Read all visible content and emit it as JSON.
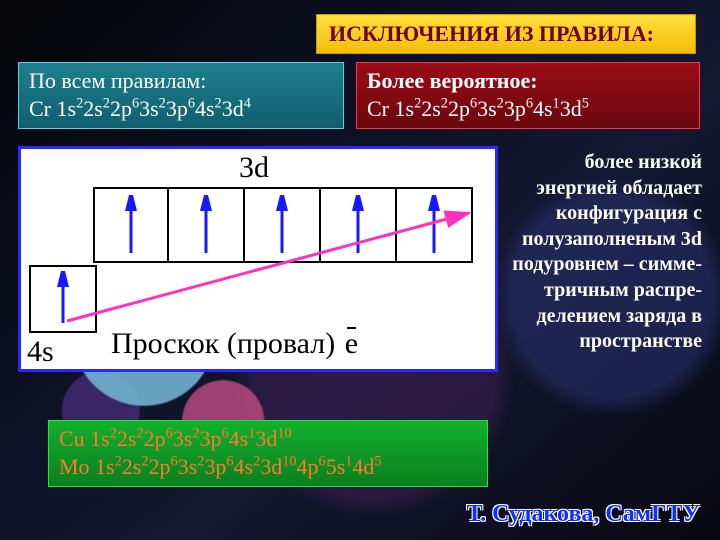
{
  "title": "ИСКЛЮЧЕНИЯ ИЗ ПРАВИЛА:",
  "left_rule": {
    "line1": "По всем правилам:",
    "el": "Cr",
    "cfg": [
      "1s",
      "2",
      "2s",
      "2",
      "2p",
      "6",
      "3s",
      "2",
      "3p",
      "6",
      "4s",
      "2",
      "3d",
      "4"
    ]
  },
  "right_prob": {
    "line1": "Более вероятное:",
    "el": "Cr",
    "cfg": [
      "1s",
      "2",
      "2s",
      "2",
      "2p",
      "6",
      "3s",
      "2",
      "3p",
      "6",
      "4s",
      "1",
      "3d",
      "5"
    ]
  },
  "side_text": "более низкой энергией обладает конфигурация с полузаполненым 3d подуровнем – симме- тричным распре- делением заряда в пространстве",
  "bottom": {
    "rows": [
      {
        "el": "Cu",
        "cfg": [
          "1s",
          "2",
          "2s",
          "2",
          "2p",
          "6",
          "3s",
          "2",
          "3p",
          "6",
          "4s",
          "1",
          "3d",
          "10"
        ]
      },
      {
        "el": "Mo",
        "cfg": [
          "1s",
          "2",
          "2s",
          "2",
          "2p",
          "6",
          "3s",
          "2",
          "3p",
          "6",
          "4s",
          "2",
          "3d",
          "10",
          "4p",
          "6",
          "5s",
          "1",
          "4d",
          "5"
        ]
      }
    ]
  },
  "diagram": {
    "label_d": "3d",
    "label_s": "4s",
    "proskok": "Проскок (провал)",
    "ebar": "e",
    "arrow_color": "#1818ff",
    "jump_color": "#ff2fbf",
    "d_cells": 5,
    "s_cells": 1
  },
  "credit": "Т. Судакова, СамГТУ",
  "colors": {
    "title_bg": "#f8c814",
    "title_border": "#c79a00",
    "title_text": "#6e0000",
    "left_bg": "#176f7d",
    "left_border": "#5ecfda",
    "right_bg": "#820a11",
    "right_border": "#ff363f",
    "bottom_bg": "#0f9a25",
    "bottom_border": "#18ea3d",
    "bottom_text": "#ff7a2b",
    "diag_border": "#2828ff",
    "credit_color": "#1030ff"
  }
}
